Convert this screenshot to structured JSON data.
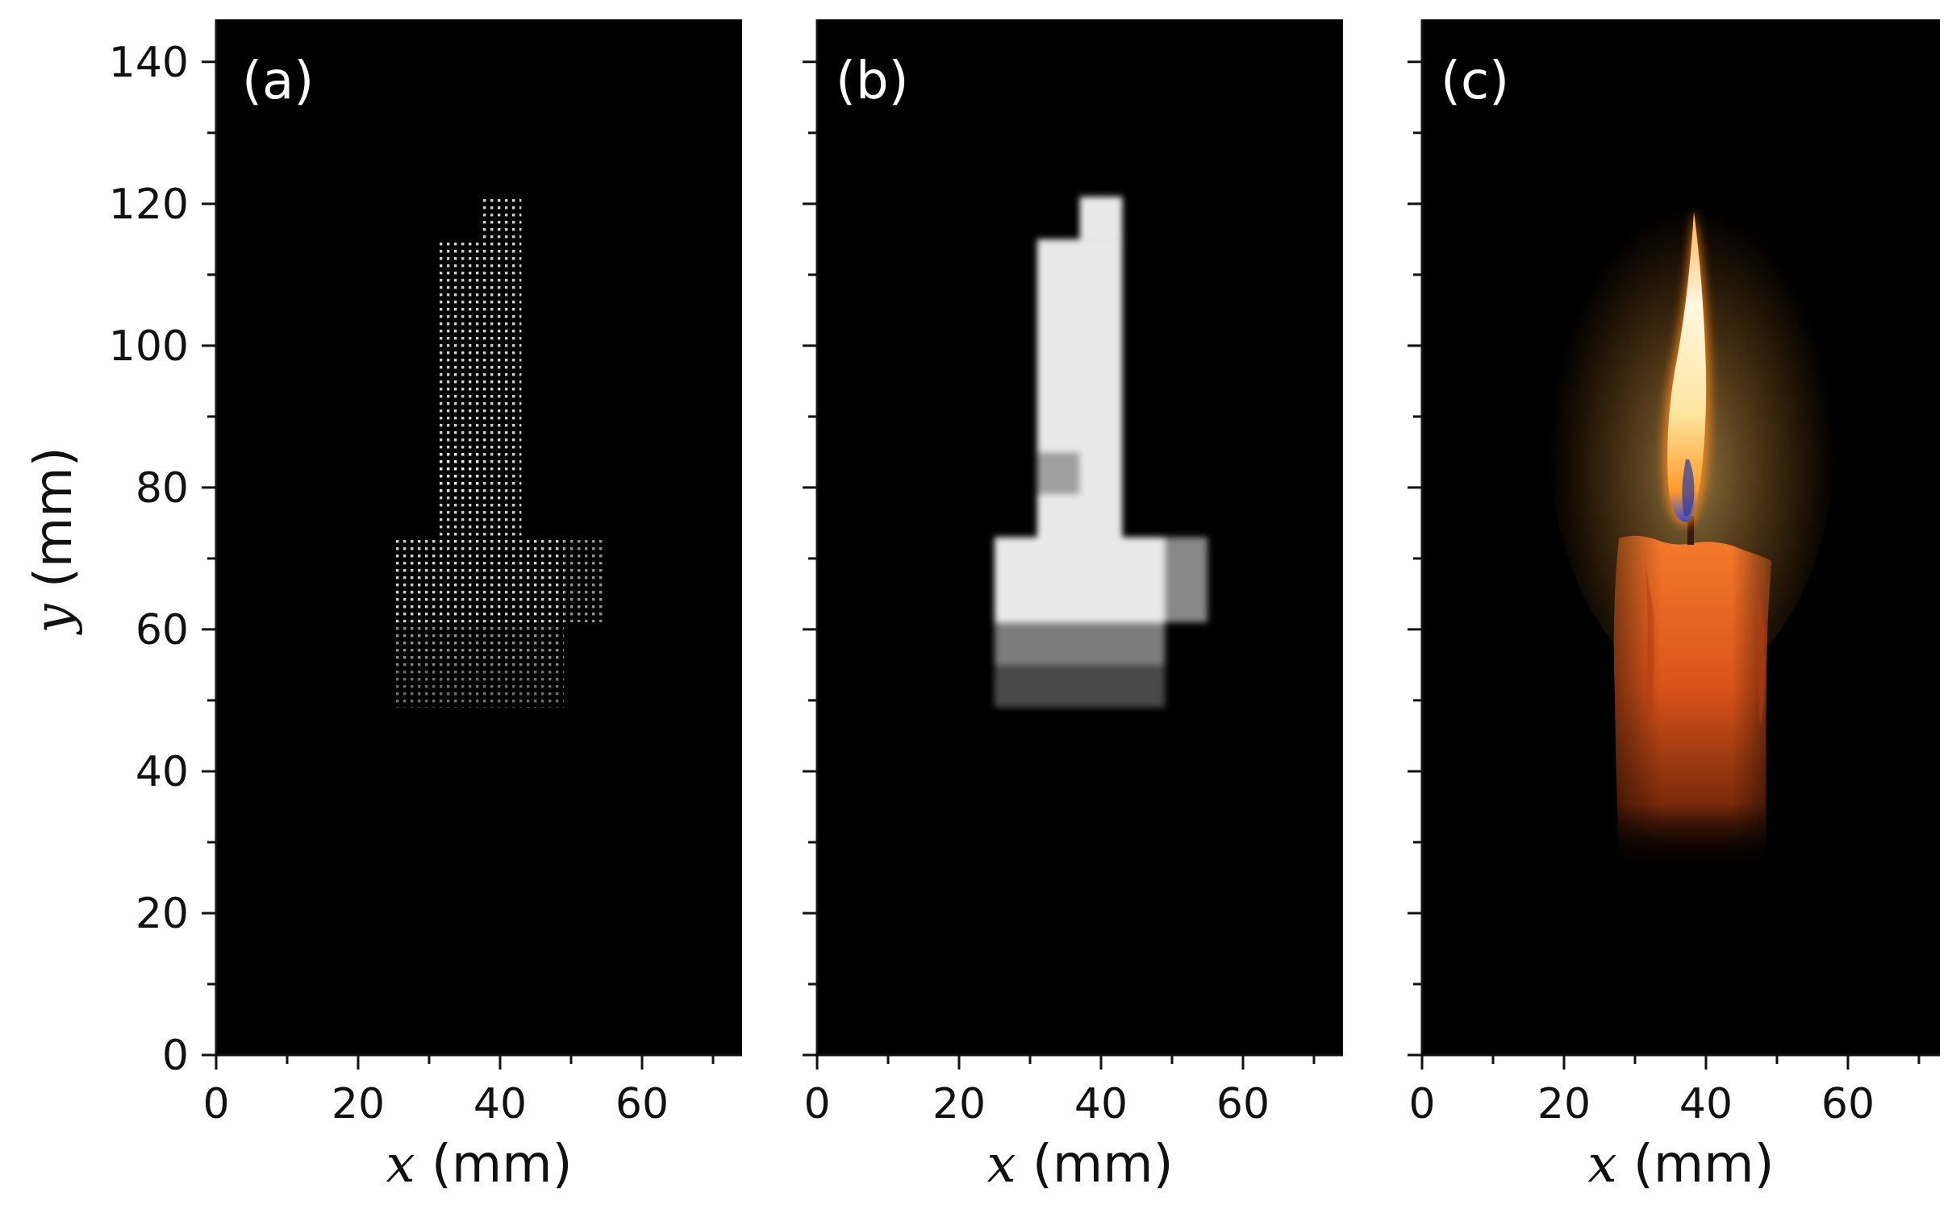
{
  "figure": {
    "panels": [
      {
        "label": "(a)",
        "xlabel_var": "x",
        "xlabel_unit": " (mm)"
      },
      {
        "label": "(b)",
        "xlabel_var": "x",
        "xlabel_unit": " (mm)"
      },
      {
        "label": "(c)",
        "xlabel_var": "x",
        "xlabel_unit": " (mm)"
      }
    ],
    "ylabel_var": "y",
    "ylabel_unit": " (mm)",
    "x_ticks": [
      "0",
      "20",
      "40",
      "60"
    ],
    "y_ticks": [
      "0",
      "20",
      "40",
      "60",
      "80",
      "100",
      "120",
      "140"
    ],
    "xlim": [
      0,
      74
    ],
    "ylim": [
      0,
      146
    ],
    "colors": {
      "panel_background": "#000000",
      "flame": "#ffb347",
      "candle": "#e8641e",
      "reconstruction": "#f2f2f2"
    }
  },
  "chart_data": {
    "type": "heatmap",
    "xlim": [
      0,
      74
    ],
    "ylim": [
      0,
      146
    ],
    "x_tick_values": [
      0,
      20,
      40,
      60
    ],
    "y_tick_values": [
      0,
      20,
      40,
      60,
      80,
      100,
      120,
      140
    ],
    "regions": [
      {
        "x": [
          37,
          43
        ],
        "y": [
          115,
          121
        ],
        "intensity": 0.95
      },
      {
        "x": [
          31,
          43
        ],
        "y": [
          73,
          115
        ],
        "intensity": 0.95
      },
      {
        "x": [
          31,
          37
        ],
        "y": [
          79,
          85
        ],
        "intensity": 0.65
      },
      {
        "x": [
          25,
          49
        ],
        "y": [
          61,
          73
        ],
        "intensity": 0.95
      },
      {
        "x": [
          49,
          55
        ],
        "y": [
          61,
          73
        ],
        "intensity": 0.55
      },
      {
        "x": [
          25,
          49
        ],
        "y": [
          55,
          61
        ],
        "intensity": 0.5
      },
      {
        "x": [
          25,
          49
        ],
        "y": [
          49,
          55
        ],
        "intensity": 0.3
      }
    ]
  }
}
